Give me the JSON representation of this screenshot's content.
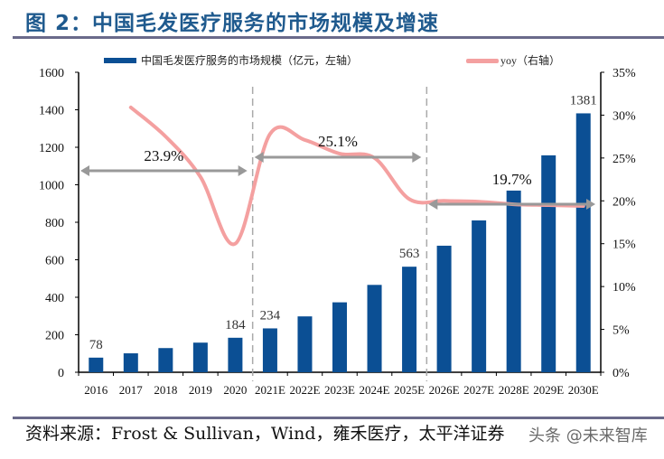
{
  "title": "图 2：中国毛发医疗服务的市场规模及增速",
  "source": "资料来源：Frost & Sullivan，Wind，雍禾医疗，太平洋证券",
  "watermark": "头条 @未来智库",
  "chart_data": {
    "type": "bar+line",
    "categories": [
      "2016",
      "2017",
      "2018",
      "2019",
      "2020",
      "2021E",
      "2022E",
      "2023E",
      "2024E",
      "2025E",
      "2026E",
      "2027E",
      "2028E",
      "2029E",
      "2030E"
    ],
    "series": [
      {
        "name": "中国毛发医疗服务的市场规模（亿元，左轴）",
        "type": "bar",
        "axis": "left",
        "color": "#0b4f94",
        "values": [
          78,
          101,
          129,
          158,
          184,
          234,
          298,
          373,
          466,
          563,
          675,
          810,
          969,
          1157,
          1381
        ],
        "data_labels": {
          "0": "78",
          "4": "184",
          "5": "234",
          "9": "563",
          "14": "1381"
        }
      },
      {
        "name": "yoy（右轴）",
        "type": "line",
        "axis": "right",
        "color": "#f4a0a0",
        "values": [
          null,
          30.9,
          27.5,
          22.8,
          15.0,
          27.8,
          27.1,
          25.5,
          25.0,
          20.2,
          20.0,
          19.9,
          19.6,
          19.5,
          19.4
        ]
      }
    ],
    "left_axis": {
      "range": [
        0,
        1600
      ],
      "ticks": [
        "0",
        "200",
        "400",
        "600",
        "800",
        "1000",
        "1200",
        "1400",
        "1600"
      ]
    },
    "right_axis": {
      "range": [
        0,
        35
      ],
      "ticks": [
        "0%",
        "5%",
        "10%",
        "15%",
        "20%",
        "25%",
        "30%",
        "35%"
      ]
    },
    "annotations": [
      {
        "label": "23.9%",
        "from": "2016",
        "to": "2020"
      },
      {
        "label": "25.1%",
        "from": "2021E",
        "to": "2025E"
      },
      {
        "label": "19.7%",
        "from": "2026E",
        "to": "2030E"
      }
    ],
    "dividers_after": [
      "2020",
      "2025E"
    ],
    "legend": "top",
    "grid": false
  }
}
